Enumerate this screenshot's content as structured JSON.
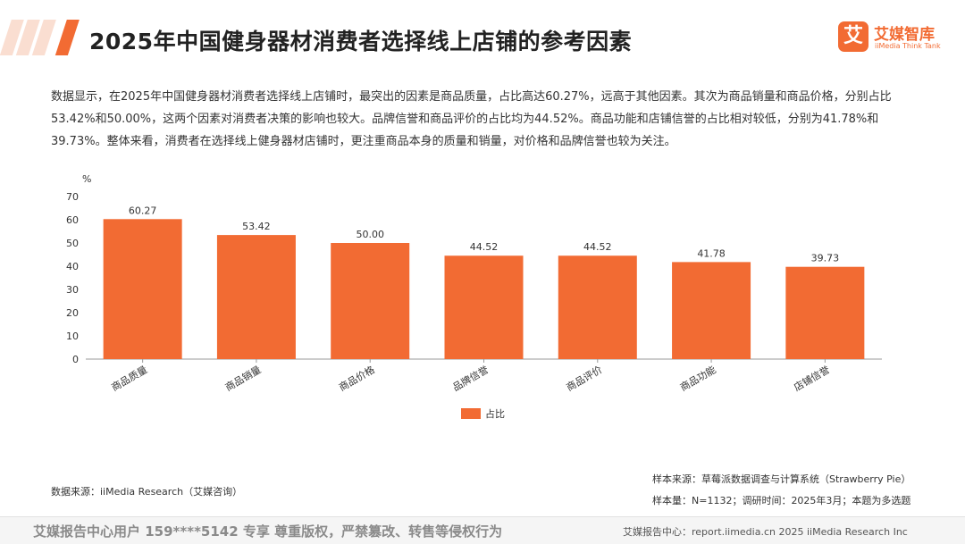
{
  "header": {
    "title": "2025年中国健身器材消费者选择线上店铺的参考因素"
  },
  "logo": {
    "mark": "艾",
    "name": "艾媒智库",
    "sub": "iiMedia Think Tank"
  },
  "summary": "数据显示，在2025年中国健身器材消费者选择线上店铺时，最突出的因素是商品质量，占比高达60.27%，远高于其他因素。其次为商品销量和商品价格，分别占比53.42%和50.00%，这两个因素对消费者决策的影响也较大。品牌信誉和商品评价的占比均为44.52%。商品功能和店铺信誉的占比相对较低，分别为41.78%和39.73%。整体来看，消费者在选择线上健身器材店铺时，更注重商品本身的质量和销量，对价格和品牌信誉也较为关注。",
  "chart_data": {
    "type": "bar",
    "categories": [
      "商品质量",
      "商品销量",
      "商品价格",
      "品牌信誉",
      "商品评价",
      "商品功能",
      "店铺信誉"
    ],
    "series": [
      {
        "name": "占比",
        "values": [
          60.27,
          53.42,
          50.0,
          44.52,
          44.52,
          41.78,
          39.73
        ]
      }
    ],
    "value_labels": [
      "60.27",
      "53.42",
      "50.00",
      "44.52",
      "44.52",
      "41.78",
      "39.73"
    ],
    "ylabel": "%",
    "ylim": [
      0,
      70
    ],
    "yticks": [
      0,
      10,
      20,
      30,
      40,
      50,
      60,
      70
    ],
    "grid": false,
    "legend_position": "bottom",
    "bar_color": "#f26b33"
  },
  "sources": {
    "data_source": "数据来源：iiMedia Research（艾媒咨询）",
    "sample_source": "样本来源：草莓派数据调查与计算系统（Strawberry Pie）",
    "sample_info": "样本量：N=1132；调研时间：2025年3月；本题为多选题"
  },
  "footer": {
    "left": "艾媒报告中心用户 159****5142 专享 尊重版权，严禁篡改、转售等侵权行为",
    "right": "艾媒报告中心：report.iimedia.cn  2025 iiMedia Research Inc"
  },
  "colors": {
    "accent": "#f26b33"
  }
}
